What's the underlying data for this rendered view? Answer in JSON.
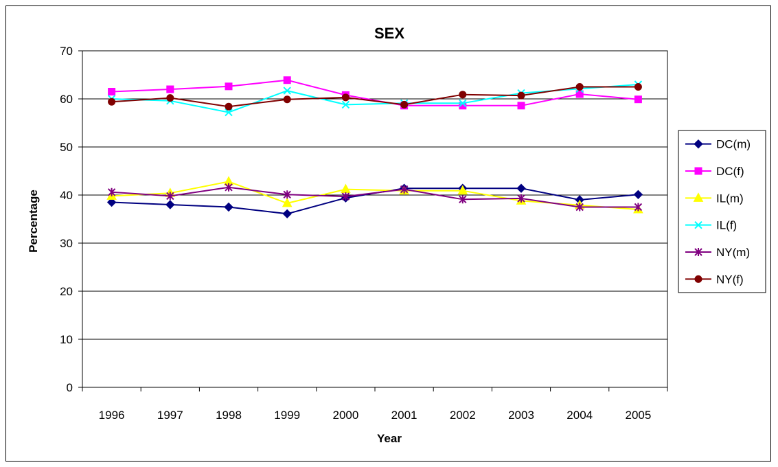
{
  "chart_data": {
    "type": "line",
    "title": "SEX",
    "xlabel": "Year",
    "ylabel": "Percentage",
    "ylim": [
      0,
      70
    ],
    "yticks": [
      "0",
      "10",
      "20",
      "30",
      "40",
      "50",
      "60",
      "70"
    ],
    "categories": [
      "1996",
      "1997",
      "1998",
      "1999",
      "2000",
      "2001",
      "2002",
      "2003",
      "2004",
      "2005"
    ],
    "grid": "horizontal",
    "legend_position": "right",
    "series": [
      {
        "name": "DC(m)",
        "color": "#000080",
        "marker": "diamond",
        "values": [
          38.5,
          38.0,
          37.5,
          36.1,
          39.4,
          41.4,
          41.4,
          41.4,
          39.0,
          40.1
        ]
      },
      {
        "name": "DC(f)",
        "color": "#FF00FF",
        "marker": "square",
        "values": [
          61.5,
          62.0,
          62.6,
          63.9,
          60.8,
          58.6,
          58.6,
          58.6,
          61.0,
          59.9
        ]
      },
      {
        "name": "IL(m)",
        "color": "#FFFF00",
        "marker": "triangle",
        "values": [
          39.8,
          40.4,
          42.8,
          38.3,
          41.2,
          40.9,
          40.9,
          38.8,
          37.9,
          37.0
        ]
      },
      {
        "name": "IL(f)",
        "color": "#00FFFF",
        "marker": "x",
        "values": [
          60.0,
          59.6,
          57.2,
          61.7,
          58.8,
          59.1,
          59.1,
          61.2,
          62.1,
          63.0
        ]
      },
      {
        "name": "NY(m)",
        "color": "#800080",
        "marker": "star",
        "values": [
          40.6,
          39.8,
          41.6,
          40.1,
          39.7,
          41.2,
          39.1,
          39.3,
          37.5,
          37.5
        ]
      },
      {
        "name": "NY(f)",
        "color": "#800000",
        "marker": "circle",
        "values": [
          59.4,
          60.2,
          58.4,
          59.9,
          60.3,
          58.8,
          60.9,
          60.7,
          62.5,
          62.5
        ]
      }
    ]
  }
}
